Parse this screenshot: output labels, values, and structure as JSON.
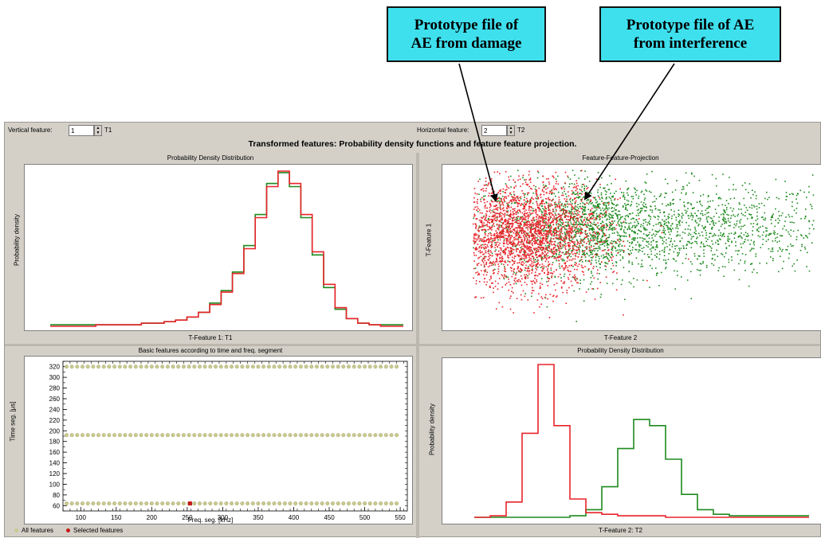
{
  "callouts": {
    "damage": {
      "line1": "Prototype file of",
      "line2": "AE from damage"
    },
    "interference": {
      "line1": "Prototype file of AE",
      "line2": "from interference"
    }
  },
  "toolbar": {
    "vertical_label": "Vertical feature:",
    "vertical_value": "1",
    "vertical_unit": "T1",
    "horizontal_label": "Horizontal feature:",
    "horizontal_value": "2",
    "horizontal_unit": "T2"
  },
  "main_title": "Transformed features: Probability density functions and feature feature projection.",
  "panels": {
    "pdd_top": {
      "title": "Probability Density Distribution",
      "xlabel": "T-Feature 1: T1",
      "ylabel": "Probability density"
    },
    "projection": {
      "title": "Feature-Feature-Projection",
      "xlabel": "T-Feature 2",
      "ylabel": "T-Feature 1"
    },
    "basic": {
      "title": "Basic features according to time and freq. segment",
      "xlabel": "Freq. seg. [kHz]",
      "ylabel": "Time seg. [µs]"
    },
    "pdd_bottom": {
      "title": "Probability Density Distribution",
      "xlabel": "T-Feature 2: T2",
      "ylabel": "Probability density"
    }
  },
  "legend": {
    "all": "All features",
    "selected": "Selected features"
  },
  "colors": {
    "damage": "#e8242a",
    "interference": "#1e8a1e",
    "all_features": "#c8c890",
    "selected": "#c41818",
    "callout": "#3fe0ee"
  },
  "chart_data": [
    {
      "type": "line",
      "title": "Probability Density Distribution",
      "xlabel": "T-Feature 1: T1",
      "ylabel": "Probability density",
      "x": [
        0.0,
        0.1,
        0.2,
        0.3,
        0.4,
        0.5,
        0.6,
        0.7,
        0.8,
        0.9,
        1.0,
        1.1,
        1.2,
        1.3,
        1.4,
        1.5,
        1.6,
        1.7,
        1.8,
        1.9,
        2.0,
        2.1,
        2.2,
        2.3,
        2.4,
        2.5,
        2.6,
        2.7,
        2.8,
        2.9,
        3.0
      ],
      "series": [
        {
          "name": "AE from damage",
          "values": [
            0.0,
            0.0,
            0.0,
            0.0,
            0.01,
            0.01,
            0.01,
            0.01,
            0.02,
            0.02,
            0.03,
            0.04,
            0.06,
            0.09,
            0.14,
            0.22,
            0.34,
            0.5,
            0.7,
            0.9,
            1.0,
            0.92,
            0.72,
            0.48,
            0.27,
            0.12,
            0.05,
            0.02,
            0.01,
            0.0,
            0.0
          ]
        },
        {
          "name": "AE from interference",
          "values": [
            0.01,
            0.01,
            0.01,
            0.01,
            0.01,
            0.01,
            0.01,
            0.01,
            0.02,
            0.02,
            0.03,
            0.04,
            0.06,
            0.09,
            0.15,
            0.23,
            0.35,
            0.52,
            0.72,
            0.92,
            0.99,
            0.9,
            0.7,
            0.46,
            0.25,
            0.11,
            0.05,
            0.02,
            0.01,
            0.01,
            0.01
          ]
        }
      ]
    },
    {
      "type": "scatter",
      "title": "Feature-Feature-Projection",
      "xlabel": "T-Feature 2",
      "ylabel": "T-Feature 1",
      "series": [
        {
          "name": "AE from damage",
          "center": [
            0.22,
            0.58
          ],
          "spread": [
            0.1,
            0.16
          ]
        },
        {
          "name": "AE from interference",
          "center": [
            0.45,
            0.62
          ],
          "spread": [
            0.17,
            0.14
          ]
        }
      ]
    },
    {
      "type": "scatter",
      "title": "Basic features according to time and freq. segment",
      "xlabel": "Freq. seg. [kHz]",
      "ylabel": "Time seg. [µs]",
      "xticks": [
        100,
        150,
        200,
        250,
        300,
        350,
        400,
        450,
        500,
        550
      ],
      "yticks": [
        60,
        80,
        100,
        120,
        140,
        160,
        180,
        200,
        220,
        240,
        260,
        280,
        300,
        320
      ],
      "xlim": [
        75,
        560
      ],
      "ylim": [
        50,
        330
      ],
      "rows_y": [
        320,
        192,
        64
      ],
      "row_x_start": 80,
      "row_x_end": 550,
      "row_x_step": 7.5,
      "selected": [
        {
          "x": 254,
          "y": 64
        }
      ]
    },
    {
      "type": "line",
      "title": "Probability Density Distribution",
      "xlabel": "T-Feature 2: T2",
      "ylabel": "Probability density",
      "x": [
        0.0,
        0.5,
        1.0,
        1.5,
        2.0,
        2.5,
        3.0,
        3.5,
        4.0,
        4.5,
        5.0,
        5.5,
        6.0,
        6.5,
        7.0,
        7.5,
        8.0,
        8.5,
        9.0,
        9.5,
        10.0
      ],
      "series": [
        {
          "name": "AE from damage",
          "values": [
            0.0,
            0.01,
            0.1,
            0.55,
            1.0,
            0.6,
            0.12,
            0.03,
            0.02,
            0.01,
            0.01,
            0.01,
            0.0,
            0.0,
            0.0,
            0.0,
            0.0,
            0.0,
            0.0,
            0.0,
            0.0
          ]
        },
        {
          "name": "AE from interference",
          "values": [
            0.0,
            0.0,
            0.0,
            0.0,
            0.0,
            0.0,
            0.01,
            0.05,
            0.2,
            0.45,
            0.64,
            0.6,
            0.38,
            0.15,
            0.05,
            0.02,
            0.01,
            0.01,
            0.01,
            0.01,
            0.01
          ]
        }
      ]
    }
  ]
}
